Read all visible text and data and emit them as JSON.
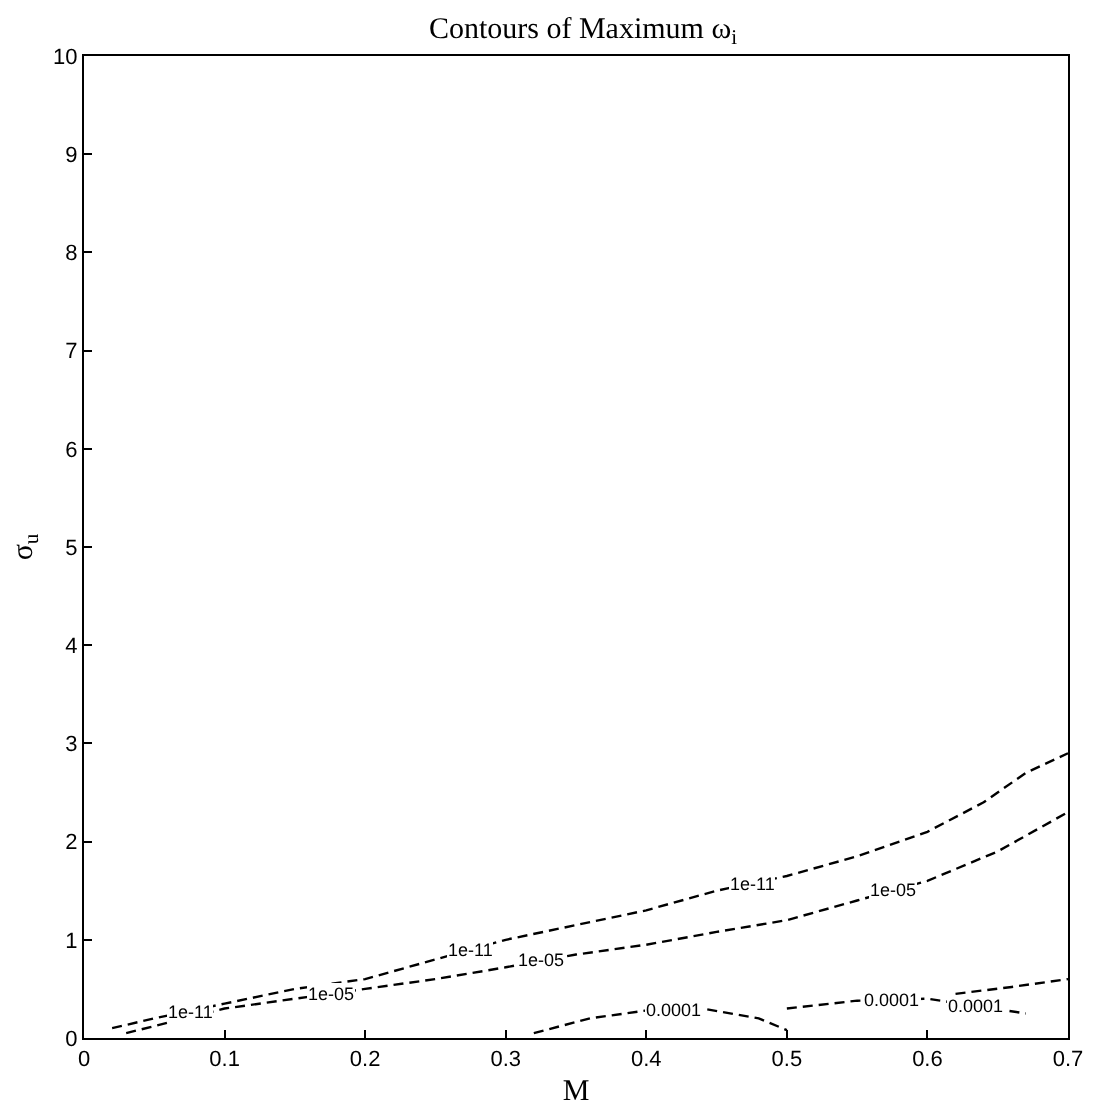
{
  "chart_data": {
    "type": "line",
    "title": "Contours of Maximum ω$_{i}$",
    "xlabel": "M",
    "ylabel": "σ$_{u}$",
    "xlim": [
      0,
      0.7
    ],
    "xticks": [
      0,
      0.1,
      0.2,
      0.3,
      0.4,
      0.5,
      0.6,
      0.7
    ],
    "ylim": [
      0,
      10
    ],
    "yticks": [
      0,
      1,
      2,
      3,
      4,
      5,
      6,
      7,
      8,
      9,
      10
    ],
    "marker": "none",
    "line_style": "dashed",
    "series": [
      {
        "color": "#000000",
        "x": [
          0.02,
          0.05,
          0.1,
          0.15,
          0.2,
          0.25,
          0.3,
          0.35,
          0.4,
          0.45,
          0.5,
          0.55,
          0.6,
          0.64,
          0.67,
          0.7
        ],
        "values": [
          0.1,
          0.2,
          0.35,
          0.5,
          0.6,
          0.8,
          1.0,
          1.15,
          1.3,
          1.5,
          1.65,
          1.85,
          2.1,
          2.4,
          2.7,
          2.9
        ]
      },
      {
        "color": "#000000",
        "x": [
          0.03,
          0.1,
          0.15,
          0.2,
          0.25,
          0.3,
          0.35,
          0.4,
          0.45,
          0.5,
          0.55,
          0.6,
          0.65,
          0.7
        ],
        "values": [
          0.05,
          0.3,
          0.4,
          0.5,
          0.6,
          0.72,
          0.85,
          0.95,
          1.08,
          1.2,
          1.4,
          1.6,
          1.9,
          2.3
        ]
      },
      {
        "color": "#000000",
        "x": [
          0.32,
          0.36,
          0.4,
          0.44,
          0.48,
          0.5
        ],
        "values": [
          0.05,
          0.2,
          0.28,
          0.3,
          0.2,
          0.08
        ]
      },
      {
        "color": "#000000",
        "x": [
          0.5,
          0.55,
          0.6,
          0.67
        ],
        "values": [
          0.3,
          0.38,
          0.4,
          0.25
        ]
      },
      {
        "color": "#000000",
        "x": [
          0.62,
          0.66,
          0.7
        ],
        "values": [
          0.45,
          0.52,
          0.6
        ]
      }
    ],
    "annotations": [
      {
        "text": "1e-11",
        "x": 0.075,
        "y": 0.275
      },
      {
        "text": "1e-05",
        "x": 0.175,
        "y": 0.45
      },
      {
        "text": "1e-11",
        "x": 0.275,
        "y": 0.9
      },
      {
        "text": "1e-05",
        "x": 0.325,
        "y": 0.785
      },
      {
        "text": "1e-11",
        "x": 0.475,
        "y": 1.575
      },
      {
        "text": "1e-05",
        "x": 0.575,
        "y": 1.5
      },
      {
        "text": "0.0001",
        "x": 0.42,
        "y": 0.29
      },
      {
        "text": "0.0001",
        "x": 0.575,
        "y": 0.39
      },
      {
        "text": "0.0001",
        "x": 0.635,
        "y": 0.325
      }
    ]
  }
}
